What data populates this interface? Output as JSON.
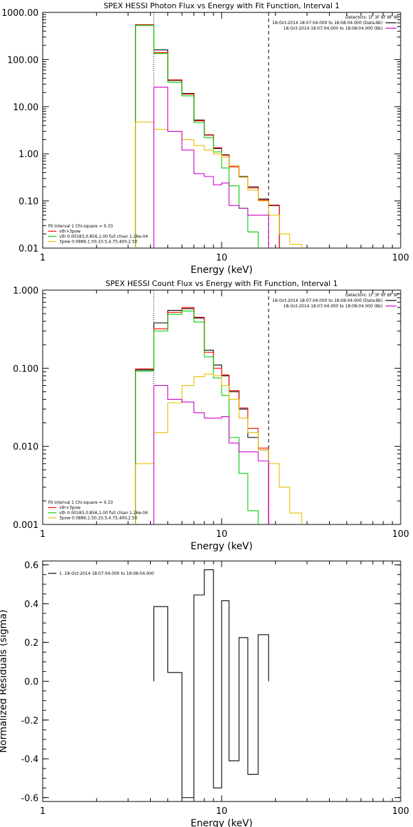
{
  "chart_data": [
    {
      "type": "line",
      "title": "SPEX HESSI Photon Flux vs Energy with Fit Function, Interval 1",
      "xlabel": "Energy (keV)",
      "ylabel": "",
      "xscale": "log",
      "yscale": "log",
      "xlim": [
        1,
        100
      ],
      "ylim": [
        0.01,
        1000
      ],
      "xtick_labels": [
        "1",
        "10",
        "100"
      ],
      "ytick_labels": [
        "0.01",
        "0.10",
        "1.00",
        "10.00",
        "100.00",
        "1000.00"
      ],
      "ytick_values": [
        0.01,
        0.1,
        1,
        10,
        100,
        1000
      ],
      "vlines": [
        {
          "x": 4.18,
          "style": "dotted"
        },
        {
          "x": 18.3,
          "style": "dashed"
        }
      ],
      "detector_text": "Detectors: 1F 3F 6F 8F 9F",
      "legend_right": [
        {
          "text": "18-Oct-2014 18:07:04.000 to 18:08:04.000 (Data-Bk)",
          "color": "#000000"
        },
        {
          "text": "18-Oct-2014 18:07:04.000 to 18:08:04.000 (Bk)",
          "color": "#cc00cc"
        }
      ],
      "legend_left": [
        {
          "text": "Fit Interval 1    Chi-square = 0.33",
          "color": ""
        },
        {
          "text": "vth+3pow",
          "color": "#ff0000"
        },
        {
          "text": "vth 0.00183,0.856,1.00   full chian 1.26e-04",
          "color": "#00cc00"
        },
        {
          "text": "3pow 0.0886,1.50,10.5,4.75,400,2.50",
          "color": "#e6c000"
        }
      ],
      "bin_edges": [
        3.3,
        4.18,
        5.0,
        6.0,
        7.0,
        8.0,
        9.0,
        10.0,
        11.0,
        12.5,
        14.0,
        16.0,
        18.3,
        21.0,
        24.0,
        28.0
      ],
      "series": [
        {
          "name": "Data-Bk",
          "color": "#000000",
          "values": [
            540,
            160,
            36,
            19,
            5.2,
            2.5,
            1.3,
            0.95,
            0.55,
            0.33,
            0.2,
            0.11,
            0.08,
            null,
            null
          ]
        },
        {
          "name": "vth+3pow",
          "color": "#ff0000",
          "values": [
            550,
            140,
            37,
            18.5,
            5.0,
            2.55,
            1.35,
            0.93,
            0.53,
            0.32,
            0.19,
            0.105,
            0.082,
            null,
            null
          ]
        },
        {
          "name": "vth",
          "color": "#00cc00",
          "values": [
            530,
            135,
            33,
            17,
            4.6,
            2.2,
            1.1,
            0.5,
            0.21,
            0.07,
            0.022,
            null,
            null,
            null,
            null
          ]
        },
        {
          "name": "3pow",
          "color": "#e6c000",
          "values": [
            4.7,
            3.3,
            3.0,
            2.0,
            1.5,
            1.2,
            1.0,
            0.85,
            0.55,
            0.32,
            0.17,
            0.1,
            0.05,
            0.02,
            0.012
          ]
        },
        {
          "name": "Bk",
          "color": "#cc00cc",
          "values": [
            null,
            26,
            3.0,
            1.2,
            0.38,
            0.33,
            0.22,
            0.24,
            0.08,
            0.07,
            0.05,
            0.05,
            null,
            null,
            null
          ]
        }
      ]
    },
    {
      "type": "line",
      "title": "SPEX HESSI Count Flux vs Energy with Fit Function, Interval 1",
      "xlabel": "Energy (keV)",
      "ylabel": "",
      "xscale": "log",
      "yscale": "log",
      "xlim": [
        1,
        100
      ],
      "ylim": [
        0.001,
        1
      ],
      "xtick_labels": [
        "1",
        "10",
        "100"
      ],
      "ytick_labels": [
        "0.001",
        "0.010",
        "0.100",
        "1.000"
      ],
      "ytick_values": [
        0.001,
        0.01,
        0.1,
        1
      ],
      "vlines": [
        {
          "x": 4.18,
          "style": "dotted"
        },
        {
          "x": 18.3,
          "style": "dashed"
        }
      ],
      "detector_text": "Detectors: 1F 3F 6F 8F 9F",
      "legend_right": [
        {
          "text": "18-Oct-2014 18:07:04.000 to 18:08:04.000 (Data-Bk)",
          "color": "#000000"
        },
        {
          "text": "18-Oct-2014 18:07:04.000 to 18:08:04.000 (Bk)",
          "color": "#cc00cc"
        }
      ],
      "legend_left": [
        {
          "text": "Fit Interval 1    Chi-square = 0.33",
          "color": ""
        },
        {
          "text": "vth+3pow",
          "color": "#ff0000"
        },
        {
          "text": "vth 0.00183,0.856,1.00   full chian 1.26e-04",
          "color": "#00cc00"
        },
        {
          "text": "3pow 0.0886,1.50,10.5,4.75,400,2.50",
          "color": "#e6c000"
        }
      ],
      "bin_edges": [
        3.3,
        4.18,
        5.0,
        6.0,
        7.0,
        8.0,
        9.0,
        10.0,
        11.0,
        12.5,
        14.0,
        16.0,
        18.3,
        21.0,
        24.0,
        28.0
      ],
      "series": [
        {
          "name": "Data-Bk",
          "color": "#000000",
          "values": [
            0.095,
            0.38,
            0.55,
            0.58,
            0.44,
            0.17,
            0.11,
            0.08,
            0.05,
            0.03,
            0.013,
            0.009,
            null,
            null,
            null
          ]
        },
        {
          "name": "vth+3pow",
          "color": "#ff0000",
          "values": [
            0.098,
            0.32,
            0.52,
            0.6,
            0.45,
            0.16,
            0.1,
            0.082,
            0.052,
            0.031,
            0.017,
            0.0095,
            null,
            null,
            null
          ]
        },
        {
          "name": "vth",
          "color": "#00cc00",
          "values": [
            0.092,
            0.3,
            0.49,
            0.54,
            0.39,
            0.14,
            0.075,
            0.045,
            0.013,
            0.0045,
            0.0015,
            null,
            null,
            null,
            null
          ]
        },
        {
          "name": "3pow",
          "color": "#e6c000",
          "values": [
            0.006,
            0.015,
            0.036,
            0.06,
            0.078,
            0.084,
            0.08,
            0.06,
            0.04,
            0.023,
            0.015,
            0.009,
            0.006,
            0.003,
            0.0014
          ]
        },
        {
          "name": "Bk",
          "color": "#cc00cc",
          "values": [
            null,
            0.06,
            0.04,
            0.037,
            0.027,
            0.023,
            0.023,
            0.024,
            0.011,
            0.0085,
            0.0085,
            0.0065,
            null,
            null,
            null
          ]
        }
      ]
    },
    {
      "type": "line",
      "title": "",
      "xlabel": "Energy (keV)",
      "ylabel": "Normalized Residuals (sigma)",
      "xscale": "log",
      "yscale": "linear",
      "xlim": [
        1,
        100
      ],
      "ylim": [
        -0.62,
        0.62
      ],
      "xtick_labels": [
        "1",
        "10",
        "100"
      ],
      "ytick_labels": [
        "-0.6",
        "-0.4",
        "-0.2",
        "0.0",
        "0.2",
        "0.4",
        "0.6"
      ],
      "ytick_values": [
        -0.6,
        -0.4,
        -0.2,
        0.0,
        0.2,
        0.4,
        0.6
      ],
      "legend_left": [
        {
          "text": "1. 18-Oct-2014 18:07:04.000 to 18:08:04.000",
          "color": "#000000"
        }
      ],
      "bin_edges": [
        4.18,
        5.0,
        6.0,
        7.0,
        8.0,
        9.0,
        10.0,
        11.0,
        12.5,
        14.0,
        16.0,
        18.3
      ],
      "series": [
        {
          "name": "residuals",
          "color": "#000000",
          "values": [
            0.385,
            0.045,
            -0.6,
            0.445,
            0.575,
            -0.55,
            0.415,
            -0.41,
            0.225,
            -0.48,
            0.24
          ]
        }
      ]
    }
  ]
}
